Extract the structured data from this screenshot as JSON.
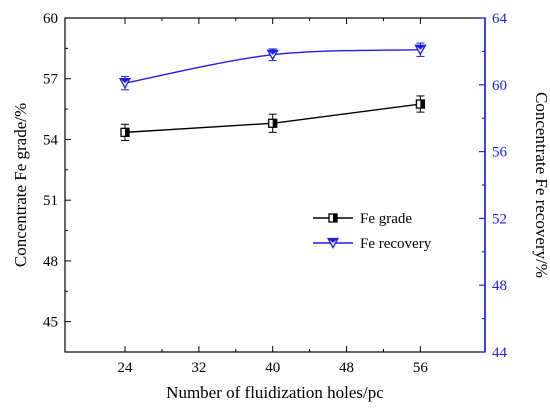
{
  "chart_data": {
    "type": "line",
    "xlabel": "Number of fluidization holes/pc",
    "ylabel_left": "Concentrate Fe grade/%",
    "ylabel_right": "Concentrate Fe recovery/%",
    "x": [
      24,
      40,
      56
    ],
    "xticks": [
      24,
      32,
      40,
      48,
      56
    ],
    "xlim": [
      17.5,
      63
    ],
    "ylim_left": [
      43.5,
      60
    ],
    "yticks_left": [
      45,
      48,
      51,
      54,
      57,
      60
    ],
    "ylim_right": [
      44,
      64
    ],
    "yticks_right": [
      44,
      48,
      52,
      56,
      60,
      64
    ],
    "legend_position": "center-right",
    "grid": false,
    "series": [
      {
        "name": "Fe grade",
        "axis": "left",
        "color": "#000000",
        "marker": "half-filled-square",
        "smooth": false,
        "values": [
          54.35,
          54.8,
          55.75
        ],
        "errors": [
          0.4,
          0.45,
          0.4
        ]
      },
      {
        "name": "Fe recovery",
        "axis": "right",
        "color": "#1f1fe6",
        "marker": "half-filled-down-triangle",
        "smooth": true,
        "values": [
          60.1,
          61.8,
          62.1
        ],
        "errors": [
          0.4,
          0.35,
          0.4
        ]
      }
    ]
  }
}
